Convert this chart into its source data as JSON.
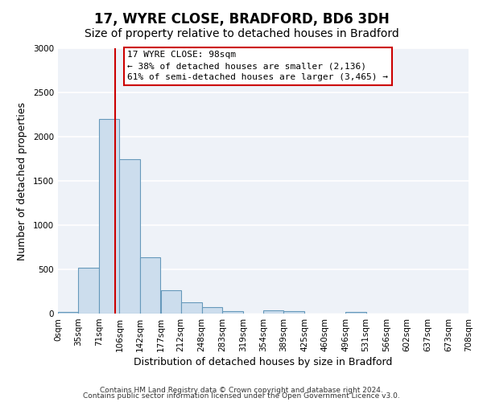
{
  "title": "17, WYRE CLOSE, BRADFORD, BD6 3DH",
  "subtitle": "Size of property relative to detached houses in Bradford",
  "xlabel": "Distribution of detached houses by size in Bradford",
  "ylabel": "Number of detached properties",
  "bins": [
    0,
    35,
    71,
    106,
    142,
    177,
    212,
    248,
    283,
    319,
    354,
    389,
    425,
    460,
    496,
    531,
    566,
    602,
    637,
    673,
    708
  ],
  "counts": [
    20,
    520,
    2200,
    1750,
    640,
    260,
    130,
    75,
    30,
    0,
    40,
    30,
    0,
    0,
    20,
    0,
    0,
    0,
    0,
    0
  ],
  "bar_color": "#ccdded",
  "bar_edge_color": "#6699bb",
  "vline_x": 98,
  "vline_color": "#cc0000",
  "annotation_text": "17 WYRE CLOSE: 98sqm\n← 38% of detached houses are smaller (2,136)\n61% of semi-detached houses are larger (3,465) →",
  "annotation_box_facecolor": "#ffffff",
  "annotation_box_edgecolor": "#cc0000",
  "ylim": [
    0,
    3000
  ],
  "yticks": [
    0,
    500,
    1000,
    1500,
    2000,
    2500,
    3000
  ],
  "tick_labels": [
    "0sqm",
    "35sqm",
    "71sqm",
    "106sqm",
    "142sqm",
    "177sqm",
    "212sqm",
    "248sqm",
    "283sqm",
    "319sqm",
    "354sqm",
    "389sqm",
    "425sqm",
    "460sqm",
    "496sqm",
    "531sqm",
    "566sqm",
    "602sqm",
    "637sqm",
    "673sqm",
    "708sqm"
  ],
  "footer1": "Contains HM Land Registry data © Crown copyright and database right 2024.",
  "footer2": "Contains public sector information licensed under the Open Government Licence v3.0.",
  "bg_color": "#ffffff",
  "plot_bg_color": "#eef2f8",
  "grid_color": "#ffffff",
  "title_fontsize": 12,
  "subtitle_fontsize": 10,
  "axis_label_fontsize": 9,
  "tick_fontsize": 7.5,
  "annotation_fontsize": 8,
  "footer_fontsize": 6.5
}
